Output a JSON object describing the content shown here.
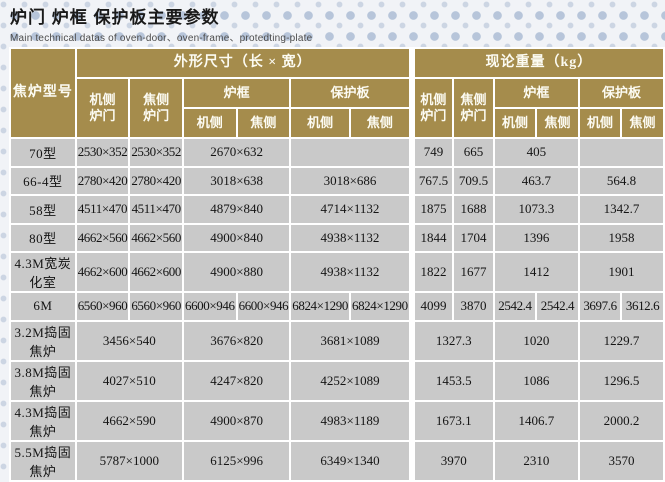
{
  "page": {
    "title": "炉门 炉框 保护板主要参数",
    "subtitle": "Main technical datas of oven-door、oven-frame、protedting-plate"
  },
  "colors": {
    "header_gold": "#a58c4c",
    "cell_gray": "#c9c9c9",
    "grid_white": "#ffffff",
    "background": "#f1f3f7",
    "dot_blue": "#b7c5da"
  },
  "table": {
    "header": {
      "model": "焦炉型号",
      "groups": [
        "外形尺寸（长 × 宽）",
        "现论重量（kg）"
      ],
      "door_machine": "机侧\n炉门",
      "door_coke": "焦侧\n炉门",
      "frame": "炉框",
      "plate": "保护板",
      "side_machine": "机侧",
      "side_coke": "焦侧"
    },
    "rows": [
      {
        "model": "70型",
        "dims": [
          {
            "text": "2530×352",
            "span": 1
          },
          {
            "text": "2530×352",
            "span": 1
          },
          {
            "text": "2670×632",
            "span": 2
          },
          {
            "text": "",
            "span": 2
          }
        ],
        "wts": [
          {
            "text": "749",
            "span": 1
          },
          {
            "text": "665",
            "span": 1
          },
          {
            "text": "405",
            "span": 2
          },
          {
            "text": "",
            "span": 2
          }
        ]
      },
      {
        "model": "66-4型",
        "dims": [
          {
            "text": "2780×420",
            "span": 1
          },
          {
            "text": "2780×420",
            "span": 1
          },
          {
            "text": "3018×638",
            "span": 2
          },
          {
            "text": "3018×686",
            "span": 2
          }
        ],
        "wts": [
          {
            "text": "767.5",
            "span": 1
          },
          {
            "text": "709.5",
            "span": 1
          },
          {
            "text": "463.7",
            "span": 2
          },
          {
            "text": "564.8",
            "span": 2
          }
        ]
      },
      {
        "model": "58型",
        "dims": [
          {
            "text": "4511×470",
            "span": 1
          },
          {
            "text": "4511×470",
            "span": 1
          },
          {
            "text": "4879×840",
            "span": 2
          },
          {
            "text": "4714×1132",
            "span": 2
          }
        ],
        "wts": [
          {
            "text": "1875",
            "span": 1
          },
          {
            "text": "1688",
            "span": 1
          },
          {
            "text": "1073.3",
            "span": 2
          },
          {
            "text": "1342.7",
            "span": 2
          }
        ]
      },
      {
        "model": "80型",
        "dims": [
          {
            "text": "4662×560",
            "span": 1
          },
          {
            "text": "4662×560",
            "span": 1
          },
          {
            "text": "4900×840",
            "span": 2
          },
          {
            "text": "4938×1132",
            "span": 2
          }
        ],
        "wts": [
          {
            "text": "1844",
            "span": 1
          },
          {
            "text": "1704",
            "span": 1
          },
          {
            "text": "1396",
            "span": 2
          },
          {
            "text": "1958",
            "span": 2
          }
        ]
      },
      {
        "model": "4.3M宽炭化室",
        "dims": [
          {
            "text": "4662×600",
            "span": 1
          },
          {
            "text": "4662×600",
            "span": 1
          },
          {
            "text": "4900×880",
            "span": 2
          },
          {
            "text": "4938×1132",
            "span": 2
          }
        ],
        "wts": [
          {
            "text": "1822",
            "span": 1
          },
          {
            "text": "1677",
            "span": 1
          },
          {
            "text": "1412",
            "span": 2
          },
          {
            "text": "1901",
            "span": 2
          }
        ]
      },
      {
        "model": "6M",
        "dims": [
          {
            "text": "6560×960",
            "span": 1
          },
          {
            "text": "6560×960",
            "span": 1
          },
          {
            "text": "6600×946",
            "span": 1
          },
          {
            "text": "6600×946",
            "span": 1
          },
          {
            "text": "6824×1290",
            "span": 1
          },
          {
            "text": "6824×1290",
            "span": 1
          }
        ],
        "wts": [
          {
            "text": "4099",
            "span": 1
          },
          {
            "text": "3870",
            "span": 1
          },
          {
            "text": "2542.4",
            "span": 1
          },
          {
            "text": "2542.4",
            "span": 1
          },
          {
            "text": "3697.6",
            "span": 1
          },
          {
            "text": "3612.6",
            "span": 1
          }
        ]
      },
      {
        "model": "3.2M捣固焦炉",
        "dims": [
          {
            "text": "3456×540",
            "span": 2
          },
          {
            "text": "3676×820",
            "span": 2
          },
          {
            "text": "3681×1089",
            "span": 2
          }
        ],
        "wts": [
          {
            "text": "1327.3",
            "span": 2
          },
          {
            "text": "1020",
            "span": 2
          },
          {
            "text": "1229.7",
            "span": 2
          }
        ]
      },
      {
        "model": "3.8M捣固焦炉",
        "dims": [
          {
            "text": "4027×510",
            "span": 2
          },
          {
            "text": "4247×820",
            "span": 2
          },
          {
            "text": "4252×1089",
            "span": 2
          }
        ],
        "wts": [
          {
            "text": "1453.5",
            "span": 2
          },
          {
            "text": "1086",
            "span": 2
          },
          {
            "text": "1296.5",
            "span": 2
          }
        ]
      },
      {
        "model": "4.3M捣固焦炉",
        "dims": [
          {
            "text": "4662×590",
            "span": 2
          },
          {
            "text": "4900×870",
            "span": 2
          },
          {
            "text": "4983×1189",
            "span": 2
          }
        ],
        "wts": [
          {
            "text": "1673.1",
            "span": 2
          },
          {
            "text": "1406.7",
            "span": 2
          },
          {
            "text": "2000.2",
            "span": 2
          }
        ]
      },
      {
        "model": "5.5M捣固焦炉",
        "dims": [
          {
            "text": "5787×1000",
            "span": 2
          },
          {
            "text": "6125×996",
            "span": 2
          },
          {
            "text": "6349×1340",
            "span": 2
          }
        ],
        "wts": [
          {
            "text": "3970",
            "span": 2
          },
          {
            "text": "2310",
            "span": 2
          },
          {
            "text": "3570",
            "span": 2
          }
        ]
      }
    ]
  }
}
